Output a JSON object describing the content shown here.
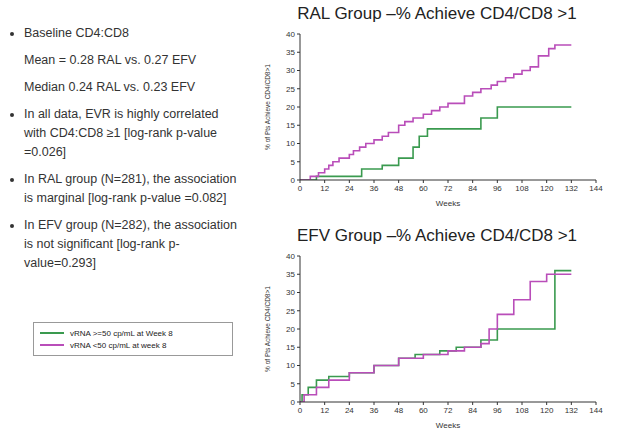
{
  "text_panel": {
    "bullets": [
      {
        "text": "Baseline CD4:CD8",
        "sub": [
          "Mean = 0.28 RAL vs. 0.27 EFV",
          "Median 0.24 RAL vs. 0.23 EFV"
        ]
      },
      {
        "text": "In all data, EVR is highly correlated with CD4:CD8 ≥1 [log-rank p-value =0.026]"
      },
      {
        "text": "In RAL group (N=281), the association is marginal [log-rank p-value =0.082]"
      },
      {
        "text": "In EFV group (N=282), the association is not significant [log-rank p-value=0.293]"
      }
    ]
  },
  "chart_data": [
    {
      "type": "line",
      "title": "RAL Group –% Achieve CD4/CD8 >1",
      "x_label": "Weeks",
      "y_label": "% of Pts Achieve CD4/CD8>1",
      "xlim": [
        0,
        144
      ],
      "xticks": [
        0,
        12,
        24,
        36,
        48,
        60,
        72,
        84,
        96,
        108,
        120,
        132,
        144
      ],
      "ylim": [
        0,
        40
      ],
      "yticks": [
        0,
        5,
        10,
        15,
        20,
        25,
        30,
        35,
        40
      ],
      "series": [
        {
          "name": "vRNA >=50 cp/mL at Week 8",
          "color": "#3a9a4f",
          "line_style": "step",
          "x": [
            0,
            8,
            30,
            40,
            48,
            55,
            58,
            62,
            88,
            96,
            132
          ],
          "values": [
            0,
            1,
            3,
            4,
            6,
            9,
            12,
            14,
            17,
            20,
            20
          ]
        },
        {
          "name": "vRNA <50 cp/mL at week 8",
          "color": "#b94db9",
          "line_style": "step",
          "x": [
            0,
            5,
            9,
            12,
            14,
            16,
            19,
            24,
            26,
            29,
            32,
            36,
            40,
            43,
            48,
            51,
            55,
            60,
            64,
            68,
            72,
            80,
            84,
            88,
            93,
            96,
            100,
            104,
            108,
            112,
            116,
            121,
            124,
            132
          ],
          "values": [
            0,
            1,
            2,
            3,
            4,
            5,
            6,
            7,
            8,
            9,
            10,
            11,
            12,
            13,
            15,
            16,
            17,
            18,
            19,
            20,
            21,
            23,
            24,
            25,
            26,
            27,
            28,
            29,
            30,
            31,
            34,
            36,
            37,
            37
          ]
        }
      ]
    },
    {
      "type": "line",
      "title": "EFV Group –% Achieve CD4/CD8 >1",
      "x_label": "Weeks",
      "y_label": "% of Pts Achieve CD4/CD8>1",
      "legend": "left",
      "xlim": [
        0,
        144
      ],
      "xticks": [
        0,
        12,
        24,
        36,
        48,
        60,
        72,
        84,
        96,
        108,
        120,
        132,
        144
      ],
      "ylim": [
        0,
        40
      ],
      "yticks": [
        0,
        5,
        10,
        15,
        20,
        25,
        30,
        35,
        40
      ],
      "series": [
        {
          "name": "vRNA >=50 cp/mL at Week 8",
          "color": "#3a9a4f",
          "line_style": "step",
          "x": [
            0,
            1,
            4,
            8,
            14,
            24,
            36,
            48,
            56,
            68,
            76,
            88,
            96,
            124,
            132
          ],
          "values": [
            0,
            2,
            4,
            6,
            7,
            8,
            10,
            12,
            13,
            14,
            15,
            17,
            20,
            36,
            36
          ]
        },
        {
          "name": "vRNA <50 cp/mL at week 8",
          "color": "#b94db9",
          "line_style": "step",
          "x": [
            0,
            2,
            8,
            14,
            24,
            36,
            48,
            60,
            72,
            80,
            88,
            92,
            96,
            104,
            112,
            120,
            132
          ],
          "values": [
            0,
            2,
            4,
            6,
            8,
            10,
            12,
            13,
            14,
            15,
            16,
            20,
            24,
            28,
            33,
            35,
            35
          ]
        }
      ]
    }
  ]
}
